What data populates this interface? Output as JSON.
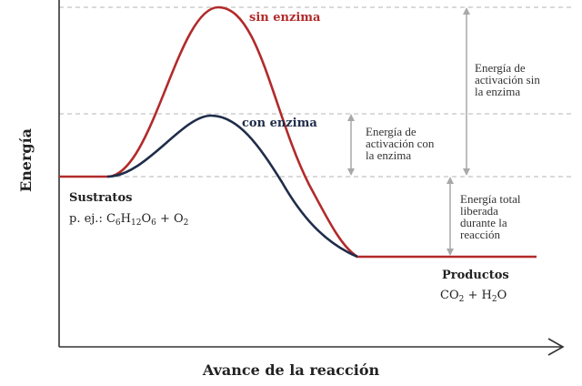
{
  "axes": {
    "ylabel": "Energía",
    "xlabel": "Avance de la reacción"
  },
  "curves": {
    "without_enzyme": {
      "label": "sin enzima",
      "color": "#b22a2a"
    },
    "with_enzyme": {
      "label": "con enzima",
      "color": "#1f2d4a"
    }
  },
  "reactants": {
    "label": "Sustratos",
    "example_prefix": "p. ej.: C",
    "sub_6a": "6",
    "h": "H",
    "sub_12": "12",
    "o": "O",
    "sub_6b": "6",
    "plus": " + O",
    "sub_2": "2"
  },
  "products": {
    "label": "Productos",
    "co": "CO",
    "sub_2a": "2",
    "plus_h": " + H",
    "sub_2b": "2",
    "o": "O"
  },
  "annotations": {
    "activation_without": [
      "Energía de",
      "activación sin",
      "la enzima"
    ],
    "activation_with": [
      "Energía de",
      "activación con",
      "la enzima"
    ],
    "total_released": [
      "Energía total",
      "liberada",
      "durante la",
      "reacción"
    ]
  },
  "colors": {
    "axis": "#333333",
    "guide": "#b5b5b5",
    "arrow": "#a8a8a8"
  }
}
